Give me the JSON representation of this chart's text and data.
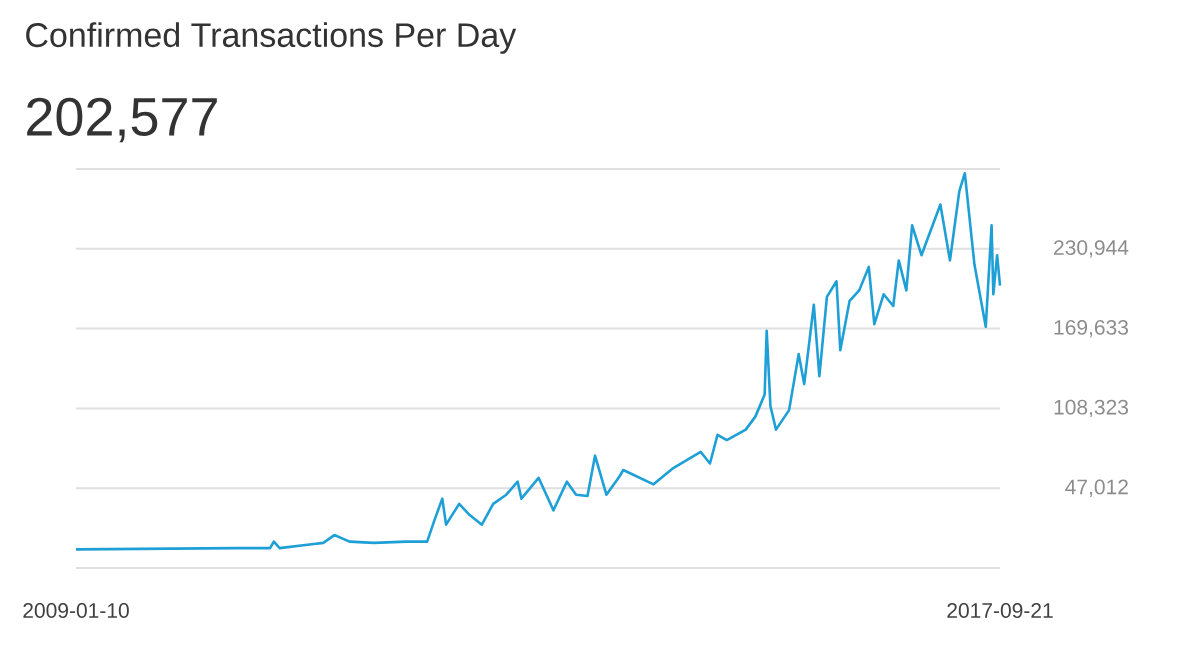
{
  "chart_data": {
    "type": "line",
    "title": "Confirmed Transactions Per Day",
    "subtitle": "202,577",
    "x": [
      "2009-01-10",
      "2010-07-15",
      "2010-11-08",
      "2010-11-21",
      "2010-12-11",
      "2011-03-31",
      "2011-05-10",
      "2011-06-17",
      "2011-08-08",
      "2011-10-31",
      "2012-02-19",
      "2012-05-01",
      "2012-05-27",
      "2012-06-22",
      "2012-07-05",
      "2012-08-19",
      "2012-09-21",
      "2012-11-05",
      "2012-12-14",
      "2013-01-28",
      "2013-03-08",
      "2013-03-21",
      "2013-05-19",
      "2013-07-09",
      "2013-08-24",
      "2013-09-25",
      "2013-11-03",
      "2013-11-29",
      "2014-01-07",
      "2014-02-21",
      "2014-03-06",
      "2014-06-18",
      "2014-08-22",
      "2014-11-27",
      "2014-12-29",
      "2015-01-24",
      "2015-02-25",
      "2015-05-01",
      "2015-06-03",
      "2015-07-05",
      "2015-07-12",
      "2015-07-25",
      "2015-08-13",
      "2015-09-27",
      "2015-10-30",
      "2015-11-18",
      "2015-12-21",
      "2016-01-09",
      "2016-02-04",
      "2016-03-08",
      "2016-03-21",
      "2016-04-22",
      "2016-05-25",
      "2016-06-27",
      "2016-07-16",
      "2016-08-17",
      "2016-09-19",
      "2016-10-08",
      "2016-11-03",
      "2016-11-23",
      "2016-12-25",
      "2017-02-28",
      "2017-04-02",
      "2017-05-04",
      "2017-05-23",
      "2017-06-25",
      "2017-08-03",
      "2017-08-23",
      "2017-08-29",
      "2017-09-11",
      "2017-09-21"
    ],
    "values": [
      0,
      1000,
      1000,
      6000,
      1000,
      4000,
      5000,
      11000,
      6000,
      5000,
      6000,
      6000,
      23000,
      39000,
      19000,
      35000,
      27000,
      19000,
      35000,
      42000,
      52000,
      39000,
      55000,
      30000,
      52000,
      42000,
      41000,
      72000,
      42000,
      56000,
      61000,
      50000,
      62000,
      75000,
      66000,
      88000,
      84000,
      92000,
      102000,
      119000,
      168000,
      110000,
      92000,
      107000,
      150000,
      127000,
      188000,
      133000,
      194000,
      206000,
      153000,
      191000,
      199000,
      217000,
      173000,
      196000,
      187000,
      222000,
      199000,
      249000,
      226000,
      265000,
      222000,
      275000,
      289000,
      219000,
      171000,
      249000,
      196000,
      226000,
      202577
    ],
    "color": "#1e9fd6",
    "xlim": [
      "2009-01-10",
      "2017-09-21"
    ],
    "xticks": [
      "2009-01-10",
      "2017-09-21"
    ],
    "ylim": [
      -14298,
      292255
    ],
    "yticks": [
      {
        "value": -14298,
        "label": null
      },
      {
        "value": 47012,
        "label": "47,012"
      },
      {
        "value": 108323,
        "label": "108,323"
      },
      {
        "value": 169633,
        "label": "169,633"
      },
      {
        "value": 230944,
        "label": "230,944"
      },
      {
        "value": 292255,
        "label": null
      }
    ],
    "grid": "y"
  }
}
